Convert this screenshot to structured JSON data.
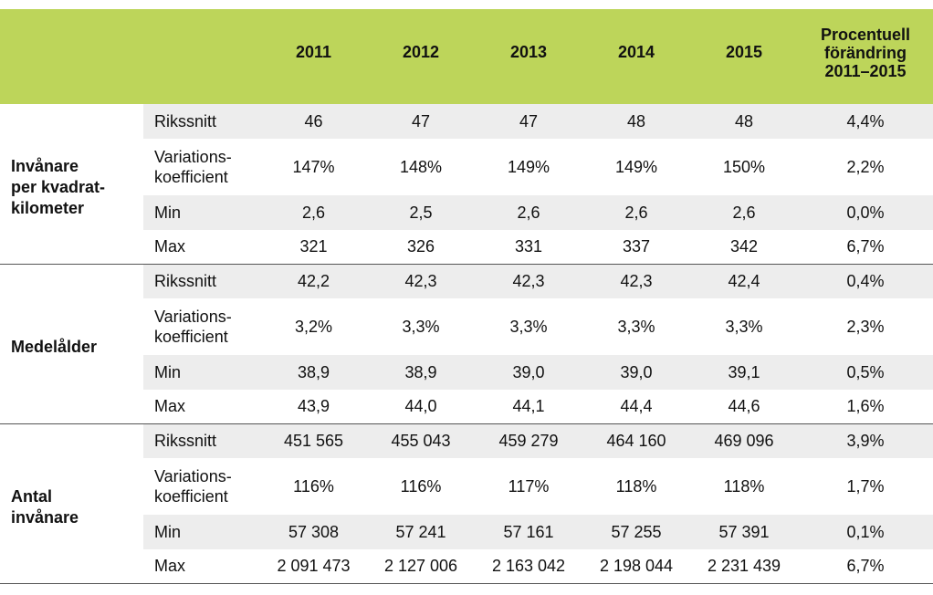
{
  "header": {
    "blank": "",
    "years": [
      "2011",
      "2012",
      "2013",
      "2014",
      "2015"
    ],
    "change_lines": [
      "Procentuell",
      "förändring",
      "2011–2015"
    ]
  },
  "groups": [
    {
      "title_lines": [
        "Invånare",
        "per kvadrat-",
        "kilometer"
      ],
      "rows": [
        {
          "label_lines": [
            "Rikssnitt"
          ],
          "values": [
            "46",
            "47",
            "47",
            "48",
            "48"
          ],
          "change": "4,4%"
        },
        {
          "label_lines": [
            "Variations-",
            "koefficient"
          ],
          "values": [
            "147%",
            "148%",
            "149%",
            "149%",
            "150%"
          ],
          "change": "2,2%"
        },
        {
          "label_lines": [
            "Min"
          ],
          "values": [
            "2,6",
            "2,5",
            "2,6",
            "2,6",
            "2,6"
          ],
          "change": "0,0%"
        },
        {
          "label_lines": [
            "Max"
          ],
          "values": [
            "321",
            "326",
            "331",
            "337",
            "342"
          ],
          "change": "6,7%"
        }
      ]
    },
    {
      "title_lines": [
        "Medelålder"
      ],
      "rows": [
        {
          "label_lines": [
            "Rikssnitt"
          ],
          "values": [
            "42,2",
            "42,3",
            "42,3",
            "42,3",
            "42,4"
          ],
          "change": "0,4%"
        },
        {
          "label_lines": [
            "Variations-",
            "koefficient"
          ],
          "values": [
            "3,2%",
            "3,3%",
            "3,3%",
            "3,3%",
            "3,3%"
          ],
          "change": "2,3%"
        },
        {
          "label_lines": [
            "Min"
          ],
          "values": [
            "38,9",
            "38,9",
            "39,0",
            "39,0",
            "39,1"
          ],
          "change": "0,5%"
        },
        {
          "label_lines": [
            "Max"
          ],
          "values": [
            "43,9",
            "44,0",
            "44,1",
            "44,4",
            "44,6"
          ],
          "change": "1,6%"
        }
      ]
    },
    {
      "title_lines": [
        "Antal",
        "invånare"
      ],
      "rows": [
        {
          "label_lines": [
            "Rikssnitt"
          ],
          "values": [
            "451 565",
            "455 043",
            "459 279",
            "464 160",
            "469 096"
          ],
          "change": "3,9%"
        },
        {
          "label_lines": [
            "Variations-",
            "koefficient"
          ],
          "values": [
            "116%",
            "116%",
            "117%",
            "118%",
            "118%"
          ],
          "change": "1,7%"
        },
        {
          "label_lines": [
            "Min"
          ],
          "values": [
            "57 308",
            "57 241",
            "57 161",
            "57 255",
            "57 391"
          ],
          "change": "0,1%"
        },
        {
          "label_lines": [
            "Max"
          ],
          "values": [
            "2 091 473",
            "2 127 006",
            "2 163 042",
            "2 198 044",
            "2 231 439"
          ],
          "change": "6,7%"
        }
      ]
    }
  ]
}
